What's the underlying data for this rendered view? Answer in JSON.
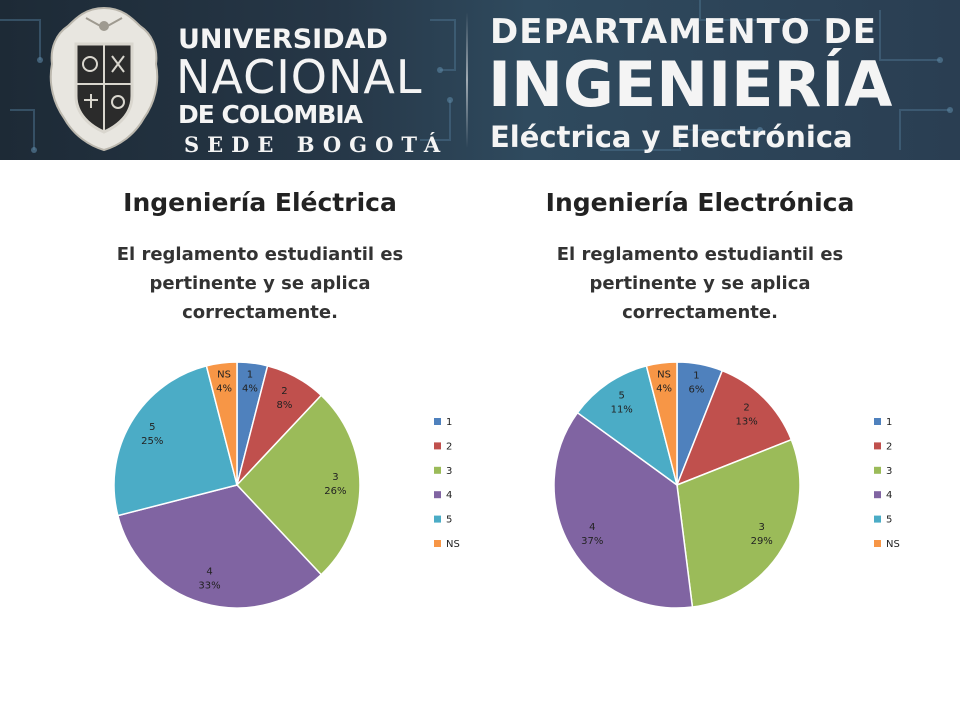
{
  "header": {
    "university": {
      "line1": "UNIVERSIDAD",
      "line2": "NACIONAL",
      "line3": "DE COLOMBIA",
      "line4": "SEDE BOGOTÁ"
    },
    "department": {
      "line1": "DEPARTAMENTO DE",
      "line2": "INGENIERÍA",
      "line3": "Eléctrica y Electrónica"
    }
  },
  "colors": {
    "1": "#4f81bd",
    "2": "#c0504d",
    "3": "#9bbb59",
    "4": "#8064a2",
    "5": "#4bacc6",
    "NS": "#f79646"
  },
  "chart_data": [
    {
      "type": "pie",
      "title": "Ingeniería Eléctrica",
      "subtitle": "El reglamento estudiantil es pertinente y se aplica correctamente.",
      "categories": [
        "1",
        "2",
        "3",
        "4",
        "5",
        "NS"
      ],
      "values": [
        4,
        8,
        26,
        33,
        25,
        4
      ],
      "value_labels": [
        "4%",
        "8%",
        "26%",
        "33%",
        "25%",
        "4%"
      ],
      "legend": [
        "1",
        "2",
        "3",
        "4",
        "5",
        "NS"
      ],
      "legend_position": "right"
    },
    {
      "type": "pie",
      "title": "Ingeniería Electrónica",
      "subtitle": "El reglamento estudiantil es pertinente y se aplica correctamente.",
      "categories": [
        "1",
        "2",
        "3",
        "4",
        "5",
        "NS"
      ],
      "values": [
        6,
        13,
        29,
        37,
        11,
        4
      ],
      "value_labels": [
        "6%",
        "13%",
        "29%",
        "37%",
        "11%",
        "4%"
      ],
      "legend": [
        "1",
        "2",
        "3",
        "4",
        "5",
        "NS"
      ],
      "legend_position": "right"
    }
  ]
}
